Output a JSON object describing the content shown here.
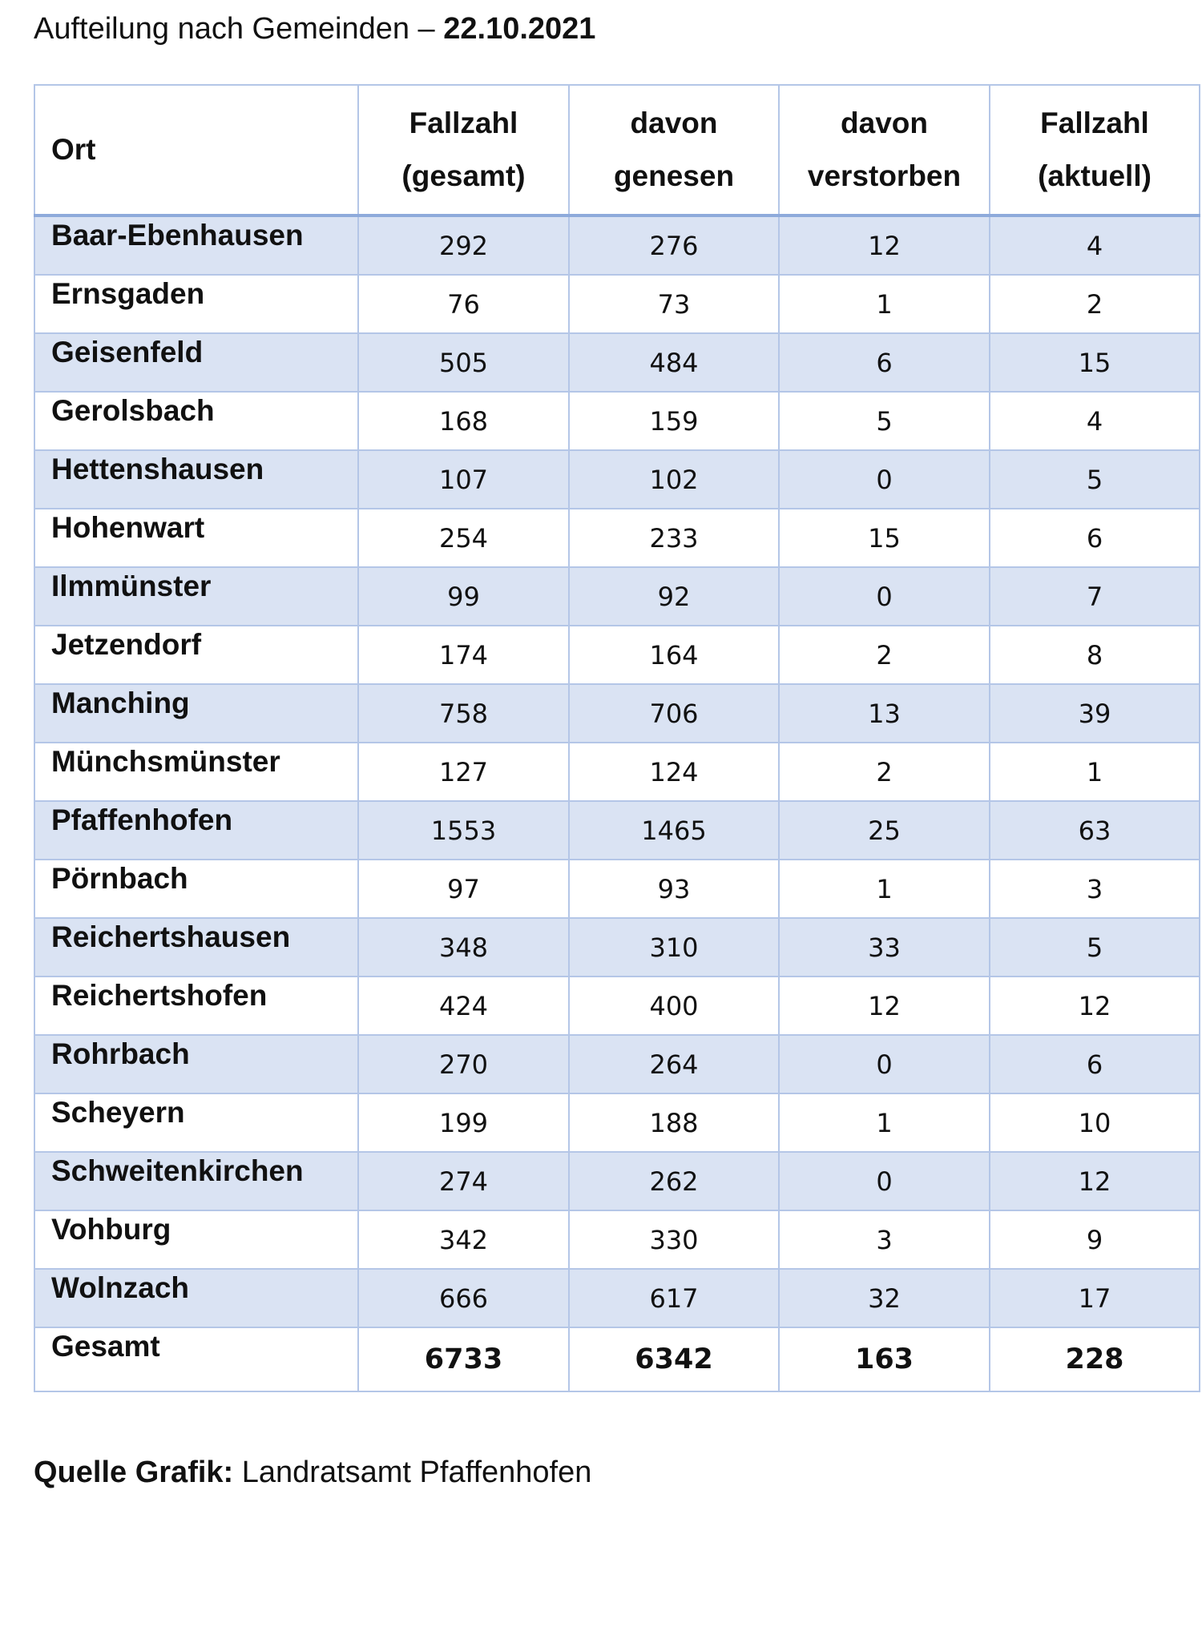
{
  "heading": {
    "prefix": "Aufteilung nach Gemeinden – ",
    "date": "22.10.2021"
  },
  "table": {
    "headers": [
      [
        "Ort"
      ],
      [
        "Fallzahl",
        "(gesamt)"
      ],
      [
        "davon",
        "genesen"
      ],
      [
        "davon",
        "verstorben"
      ],
      [
        "Fallzahl",
        "(aktuell)"
      ]
    ],
    "rows": [
      {
        "ort": "Baar-Ebenhausen",
        "gesamt": "292",
        "genesen": "276",
        "verstorben": "12",
        "aktuell": "4"
      },
      {
        "ort": "Ernsgaden",
        "gesamt": "76",
        "genesen": "73",
        "verstorben": "1",
        "aktuell": "2"
      },
      {
        "ort": "Geisenfeld",
        "gesamt": "505",
        "genesen": "484",
        "verstorben": "6",
        "aktuell": "15"
      },
      {
        "ort": "Gerolsbach",
        "gesamt": "168",
        "genesen": "159",
        "verstorben": "5",
        "aktuell": "4"
      },
      {
        "ort": "Hettenshausen",
        "gesamt": "107",
        "genesen": "102",
        "verstorben": "0",
        "aktuell": "5"
      },
      {
        "ort": "Hohenwart",
        "gesamt": "254",
        "genesen": "233",
        "verstorben": "15",
        "aktuell": "6"
      },
      {
        "ort": "Ilmmünster",
        "gesamt": "99",
        "genesen": "92",
        "verstorben": "0",
        "aktuell": "7"
      },
      {
        "ort": "Jetzendorf",
        "gesamt": "174",
        "genesen": "164",
        "verstorben": "2",
        "aktuell": "8"
      },
      {
        "ort": "Manching",
        "gesamt": "758",
        "genesen": "706",
        "verstorben": "13",
        "aktuell": "39"
      },
      {
        "ort": "Münchsmünster",
        "gesamt": "127",
        "genesen": "124",
        "verstorben": "2",
        "aktuell": "1"
      },
      {
        "ort": "Pfaffenhofen",
        "gesamt": "1553",
        "genesen": "1465",
        "verstorben": "25",
        "aktuell": "63"
      },
      {
        "ort": "Pörnbach",
        "gesamt": "97",
        "genesen": "93",
        "verstorben": "1",
        "aktuell": "3"
      },
      {
        "ort": "Reichertshausen",
        "gesamt": "348",
        "genesen": "310",
        "verstorben": "33",
        "aktuell": "5"
      },
      {
        "ort": "Reichertshofen",
        "gesamt": "424",
        "genesen": "400",
        "verstorben": "12",
        "aktuell": "12"
      },
      {
        "ort": "Rohrbach",
        "gesamt": "270",
        "genesen": "264",
        "verstorben": "0",
        "aktuell": "6"
      },
      {
        "ort": "Scheyern",
        "gesamt": "199",
        "genesen": "188",
        "verstorben": "1",
        "aktuell": "10"
      },
      {
        "ort": "Schweitenkirchen",
        "gesamt": "274",
        "genesen": "262",
        "verstorben": "0",
        "aktuell": "12"
      },
      {
        "ort": "Vohburg",
        "gesamt": "342",
        "genesen": "330",
        "verstorben": "3",
        "aktuell": "9"
      },
      {
        "ort": "Wolnzach",
        "gesamt": "666",
        "genesen": "617",
        "verstorben": "32",
        "aktuell": "17"
      }
    ],
    "total": {
      "ort": "Gesamt",
      "gesamt": "6733",
      "genesen": "6342",
      "verstorben": "163",
      "aktuell": "228"
    }
  },
  "source": {
    "label": "Quelle Grafik:",
    "text": " Landratsamt Pfaffenhofen"
  },
  "colors": {
    "row_shade": "#dae3f3",
    "grid_line": "#b4c6e7",
    "header_rule": "#8eaadb"
  }
}
